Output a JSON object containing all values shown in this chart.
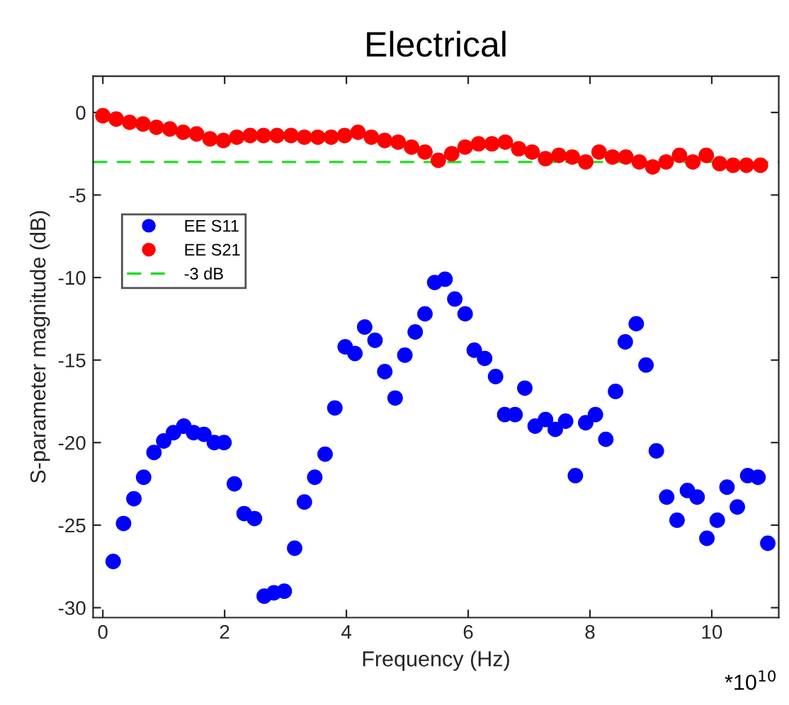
{
  "chart_data": {
    "type": "scatter",
    "title": "Electrical",
    "xlabel": "Frequency (Hz)",
    "ylabel": "S-parameter magnitude (dB)",
    "annotations": [
      "*10$^{10}$"
    ],
    "xlim": [
      -0.16,
      11.1
    ],
    "ylim": [
      -30.6,
      2.2
    ],
    "xticks": [
      0,
      2,
      4,
      6,
      8,
      10
    ],
    "yticks": [
      -30,
      -25,
      -20,
      -15,
      -10,
      -5,
      0
    ],
    "grid": false,
    "legend": "upper left",
    "marker": "circle",
    "series": [
      {
        "name": "EE S11",
        "color": "#0000ff",
        "x": [
          0.17,
          0.34,
          0.51,
          0.67,
          0.84,
          1.0,
          1.16,
          1.33,
          1.49,
          1.66,
          1.83,
          1.99,
          2.16,
          2.32,
          2.49,
          2.65,
          2.81,
          2.98,
          3.15,
          3.31,
          3.48,
          3.65,
          3.81,
          3.98,
          4.14,
          4.3,
          4.47,
          4.63,
          4.8,
          4.96,
          5.13,
          5.29,
          5.45,
          5.62,
          5.78,
          5.95,
          6.1,
          6.27,
          6.45,
          6.6,
          6.77,
          6.93,
          7.1,
          7.27,
          7.43,
          7.6,
          7.76,
          7.93,
          8.09,
          8.26,
          8.42,
          8.58,
          8.76,
          8.92,
          9.09,
          9.26,
          9.43,
          9.6,
          9.76,
          9.92,
          10.09,
          10.25,
          10.42,
          10.59,
          10.76,
          10.92
        ],
        "values": [
          -27.2,
          -24.9,
          -23.4,
          -22.1,
          -20.6,
          -19.9,
          -19.4,
          -19.0,
          -19.4,
          -19.5,
          -20.0,
          -20.0,
          -22.5,
          -24.3,
          -24.6,
          -29.3,
          -29.1,
          -29.0,
          -26.4,
          -23.6,
          -22.1,
          -20.7,
          -17.9,
          -14.2,
          -14.6,
          -13.0,
          -13.8,
          -15.7,
          -17.3,
          -14.7,
          -13.3,
          -12.2,
          -10.3,
          -10.1,
          -11.3,
          -12.2,
          -14.4,
          -14.9,
          -16.0,
          -18.3,
          -18.3,
          -16.7,
          -19.0,
          -18.6,
          -19.2,
          -18.7,
          -22.0,
          -18.8,
          -18.3,
          -19.8,
          -16.9,
          -13.9,
          -12.8,
          -15.3,
          -20.5,
          -23.3,
          -24.7,
          -22.9,
          -23.3,
          -25.8,
          -24.7,
          -22.7,
          -23.9,
          -22.0,
          -22.1,
          -26.1
        ]
      },
      {
        "name": "EE S21",
        "color": "#ff0000",
        "x": [
          0.0,
          0.22,
          0.44,
          0.66,
          0.88,
          1.1,
          1.32,
          1.54,
          1.76,
          1.98,
          2.2,
          2.42,
          2.64,
          2.86,
          3.09,
          3.31,
          3.53,
          3.75,
          3.97,
          4.19,
          4.41,
          4.63,
          4.85,
          5.07,
          5.29,
          5.51,
          5.73,
          5.95,
          6.17,
          6.39,
          6.61,
          6.83,
          7.05,
          7.27,
          7.49,
          7.71,
          7.93,
          8.15,
          8.37,
          8.59,
          8.81,
          9.03,
          9.25,
          9.47,
          9.69,
          9.91,
          10.13,
          10.35,
          10.57,
          10.8
        ],
        "values": [
          -0.2,
          -0.4,
          -0.6,
          -0.7,
          -0.9,
          -1.0,
          -1.2,
          -1.3,
          -1.6,
          -1.7,
          -1.5,
          -1.4,
          -1.4,
          -1.4,
          -1.4,
          -1.5,
          -1.5,
          -1.5,
          -1.4,
          -1.2,
          -1.5,
          -1.7,
          -1.8,
          -2.1,
          -2.4,
          -2.9,
          -2.5,
          -2.1,
          -1.9,
          -1.9,
          -1.8,
          -2.2,
          -2.4,
          -2.8,
          -2.6,
          -2.7,
          -3.0,
          -2.4,
          -2.7,
          -2.7,
          -3.0,
          -3.3,
          -3.0,
          -2.6,
          -3.0,
          -2.6,
          -3.1,
          -3.2,
          -3.2,
          -3.2
        ]
      }
    ],
    "ref_lines": [
      {
        "axis": "y",
        "value": -3,
        "label": "-3 dB",
        "color": "#22dd22",
        "line_style": "dashed"
      }
    ]
  }
}
